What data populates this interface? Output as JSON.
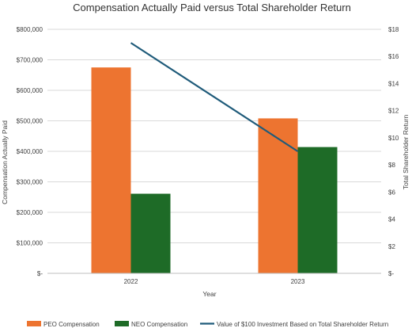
{
  "chart_data": {
    "type": "bar",
    "title": "Compensation Actually Paid versus Total Shareholder Return",
    "xlabel": "Year",
    "ylabel": "Compensation Actually Paid",
    "y2label": "Total Shareholder Return",
    "categories": [
      "2022",
      "2023"
    ],
    "ylim": [
      0,
      800000
    ],
    "y2lim": [
      0,
      18
    ],
    "yticks": [
      "$-",
      "$100,000",
      "$200,000",
      "$300,000",
      "$400,000",
      "$500,000",
      "$600,000",
      "$700,000",
      "$800,000"
    ],
    "y2ticks": [
      "$-",
      "$2",
      "$4",
      "$6",
      "$8",
      "$10",
      "$12",
      "$14",
      "$16",
      "$18"
    ],
    "grid": true,
    "legend_position": "bottom",
    "series": [
      {
        "name": "PEO Compensation",
        "type": "bar",
        "axis": "left",
        "color": "#ED7430",
        "values": [
          675000,
          508000
        ]
      },
      {
        "name": "NEO Compensation",
        "type": "bar",
        "axis": "left",
        "color": "#1E6B27",
        "values": [
          261000,
          414000
        ]
      },
      {
        "name": "Value of $100 Investment Based on Total Shareholder Return",
        "type": "line",
        "axis": "right",
        "color": "#1F5B7A",
        "values": [
          17,
          9
        ]
      }
    ]
  }
}
